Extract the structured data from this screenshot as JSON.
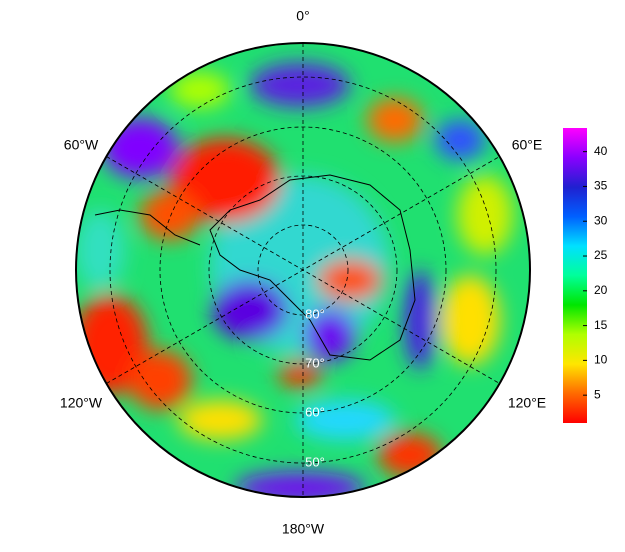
{
  "map": {
    "longitude_labels": [
      "0°",
      "60°E",
      "120°E",
      "180°W",
      "120°W",
      "60°W"
    ],
    "latitude_labels": [
      "80°",
      "70°",
      "60°",
      "50°"
    ],
    "colorbar": {
      "lim": [
        1,
        43.4
      ],
      "ticks": [
        5,
        10,
        15,
        20,
        25,
        30,
        35,
        40
      ],
      "colors": [
        "#ff0000",
        "#ff6a00",
        "#ffe600",
        "#b0ff00",
        "#00e600",
        "#00ff9a",
        "#00e0ff",
        "#0060ff",
        "#2020d0",
        "#8a00ff",
        "#ff00ff"
      ]
    }
  }
}
